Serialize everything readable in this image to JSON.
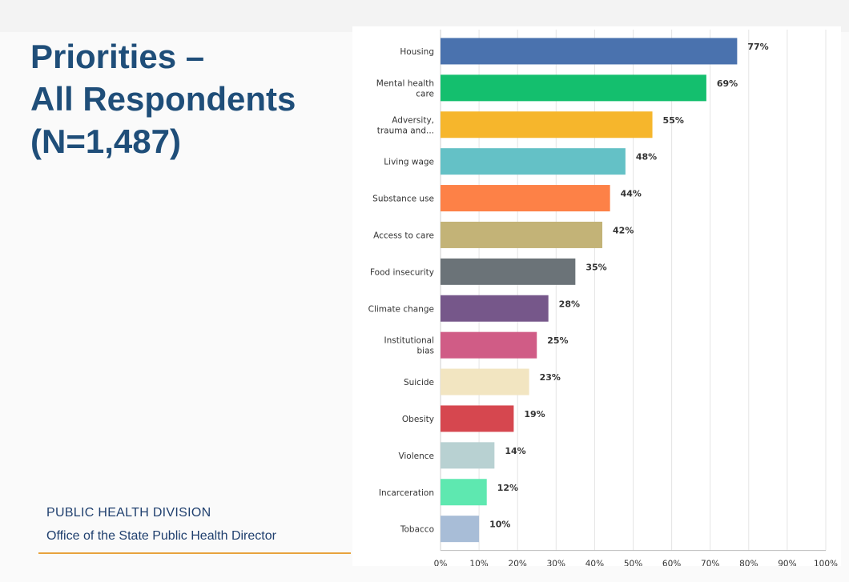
{
  "slide": {
    "title_lines": [
      "Priorities –",
      "All Respondents",
      "(N=1,487)"
    ],
    "footer_division": "PUBLIC HEALTH DIVISION",
    "footer_office": "Office of the State Public Health Director",
    "accent_rule_color": "#e8a33d",
    "title_color": "#1f4e79"
  },
  "chart_data": {
    "type": "bar",
    "orientation": "horizontal",
    "title": "",
    "xlabel": "",
    "ylabel": "",
    "xlim": [
      0,
      100
    ],
    "grid": true,
    "legend": "none",
    "categories": [
      [
        "Housing"
      ],
      [
        "Mental health",
        "care"
      ],
      [
        "Adversity,",
        "trauma and..."
      ],
      [
        "Living wage"
      ],
      [
        "Substance use"
      ],
      [
        "Access to care"
      ],
      [
        "Food insecurity"
      ],
      [
        "Climate change"
      ],
      [
        "Institutional",
        "bias"
      ],
      [
        "Suicide"
      ],
      [
        "Obesity"
      ],
      [
        "Violence"
      ],
      [
        "Incarceration"
      ],
      [
        "Tobacco"
      ]
    ],
    "values": [
      77,
      69,
      55,
      48,
      44,
      42,
      35,
      28,
      25,
      23,
      19,
      14,
      12,
      10
    ],
    "value_labels": [
      "77%",
      "69%",
      "55%",
      "48%",
      "44%",
      "42%",
      "35%",
      "28%",
      "25%",
      "23%",
      "19%",
      "14%",
      "12%",
      "10%"
    ],
    "colors": [
      "#4a72ae",
      "#14bf6e",
      "#f6b62c",
      "#64c1c6",
      "#fd8147",
      "#c3b377",
      "#6b7378",
      "#76578a",
      "#d05c86",
      "#f2e5c1",
      "#d6474f",
      "#b8d1d2",
      "#5ee8b0",
      "#a8bdd7"
    ],
    "x_ticks": [
      "0%",
      "10%",
      "20%",
      "30%",
      "40%",
      "50%",
      "60%",
      "70%",
      "80%",
      "90%",
      "100%"
    ]
  }
}
